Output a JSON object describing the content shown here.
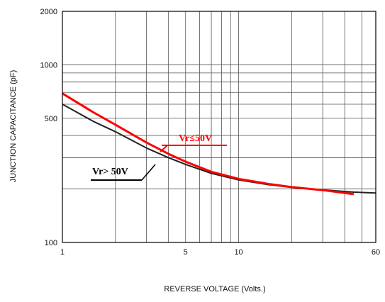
{
  "chart_data": {
    "type": "line",
    "title": "",
    "xlabel": "REVERSE VOLTAGE (Volts.)",
    "ylabel": "JUNCTION CAPACITANCE (pF)",
    "x_scale": "log",
    "y_scale": "log",
    "xlim": [
      1,
      60
    ],
    "ylim": [
      100,
      2000
    ],
    "x_ticks": [
      {
        "value": 1,
        "label": "1"
      },
      {
        "value": 5,
        "label": "5"
      },
      {
        "value": 10,
        "label": "10"
      },
      {
        "value": 60,
        "label": "60"
      }
    ],
    "y_ticks": [
      {
        "value": 100,
        "label": "100"
      },
      {
        "value": 500,
        "label": "500"
      },
      {
        "value": 1000,
        "label": "1000"
      },
      {
        "value": 2000,
        "label": "2000"
      }
    ],
    "grid": true,
    "series": [
      {
        "name": "Vr≤50V",
        "color": "#ff0000",
        "x": [
          1,
          1.5,
          2,
          3,
          4,
          5,
          7,
          10,
          15,
          20,
          30,
          45
        ],
        "y": [
          690,
          540,
          460,
          365,
          315,
          285,
          250,
          228,
          213,
          205,
          197,
          187
        ]
      },
      {
        "name": "Vr> 50V",
        "color": "#222222",
        "x": [
          1,
          1.5,
          2,
          3,
          4,
          5,
          7,
          10,
          15,
          20,
          30,
          45,
          60
        ],
        "y": [
          600,
          480,
          420,
          340,
          300,
          275,
          245,
          225,
          211,
          204,
          198,
          192,
          190
        ]
      }
    ],
    "annotations": [
      {
        "text": "Vr≤50V",
        "color": "#ff0000"
      },
      {
        "text": "Vr> 50V",
        "color": "#000000"
      }
    ]
  }
}
